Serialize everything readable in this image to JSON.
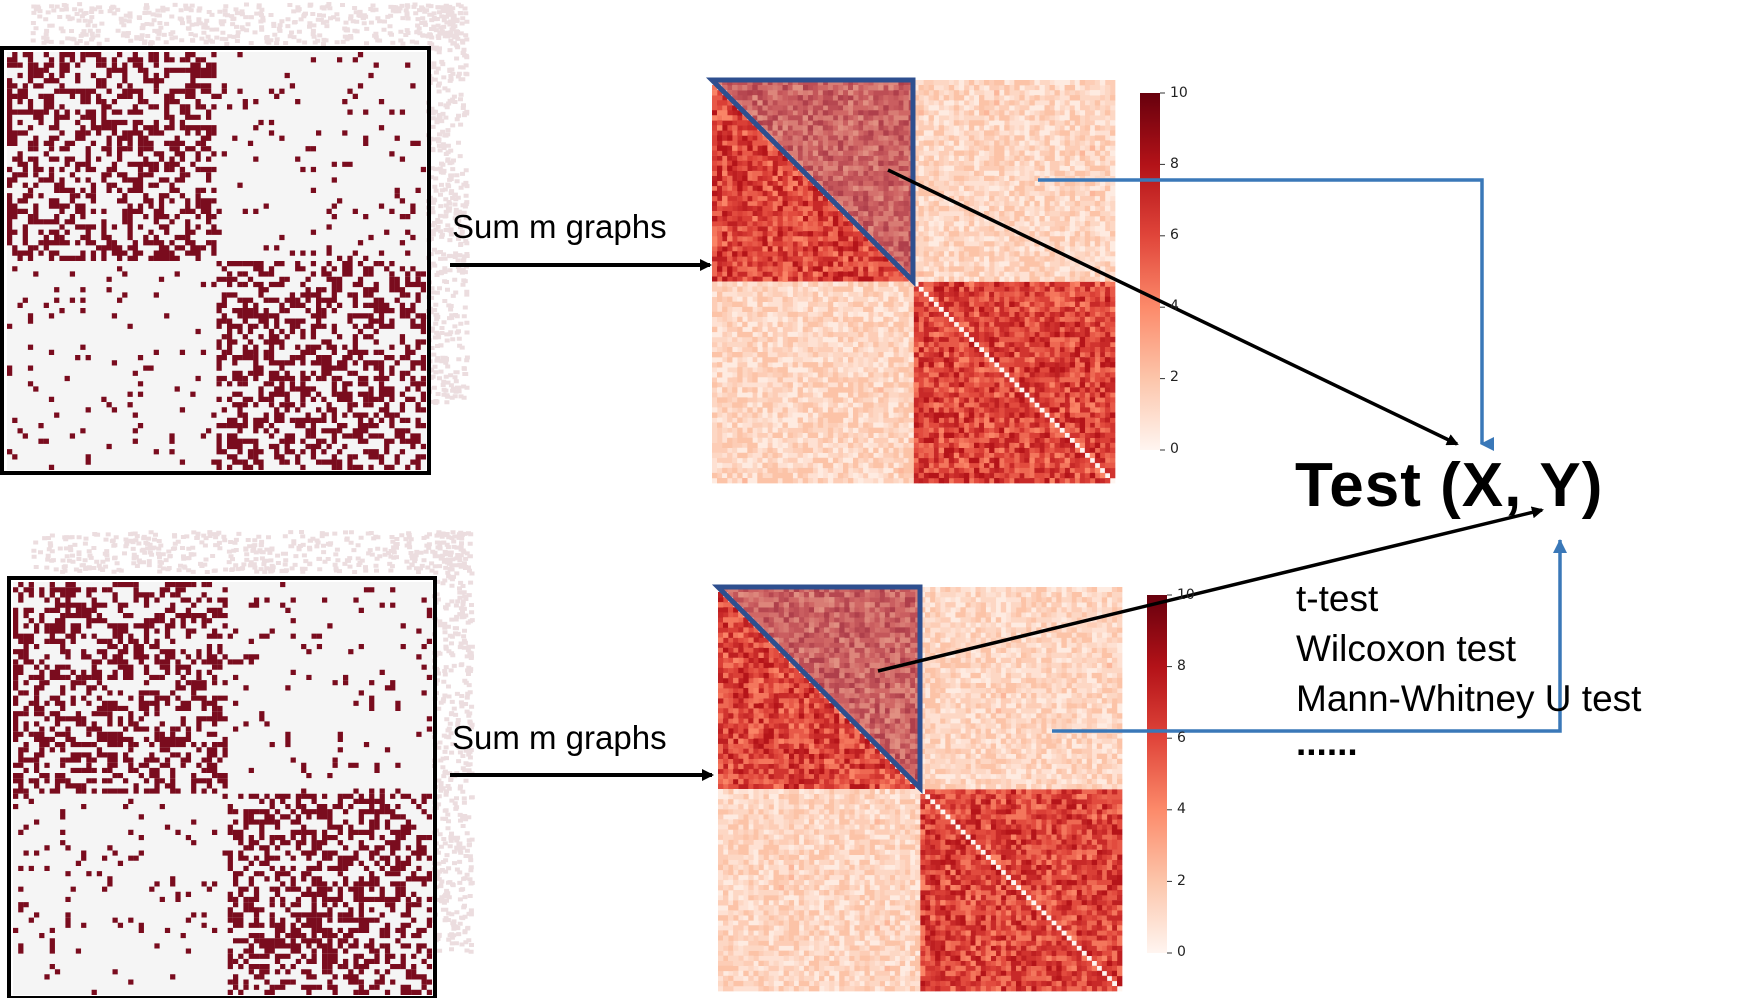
{
  "rows": [
    {
      "sum_label": "Sum m graphs",
      "colorbar_ticks": [
        "10",
        "8",
        "6",
        "4",
        "2",
        "0"
      ]
    },
    {
      "sum_label": "Sum m graphs",
      "colorbar_ticks": [
        "10",
        "8",
        "6",
        "4",
        "2",
        "0"
      ]
    }
  ],
  "test": {
    "title": "Test (X, Y)",
    "methods": [
      "t-test",
      "Wilcoxon test",
      "Mann-Whitney U test",
      "......"
    ]
  },
  "colors": {
    "adjacency_edge": "#7a0c1e",
    "adjacency_empty": "#f5f5f5",
    "triangle_outline": "#2e4f8f",
    "arrow_blue": "#3a78b8",
    "arrow_black": "#000000",
    "heat_low": "#fff5f0",
    "heat_high": "#67000d"
  },
  "colorbar_range": [
    0,
    10
  ]
}
